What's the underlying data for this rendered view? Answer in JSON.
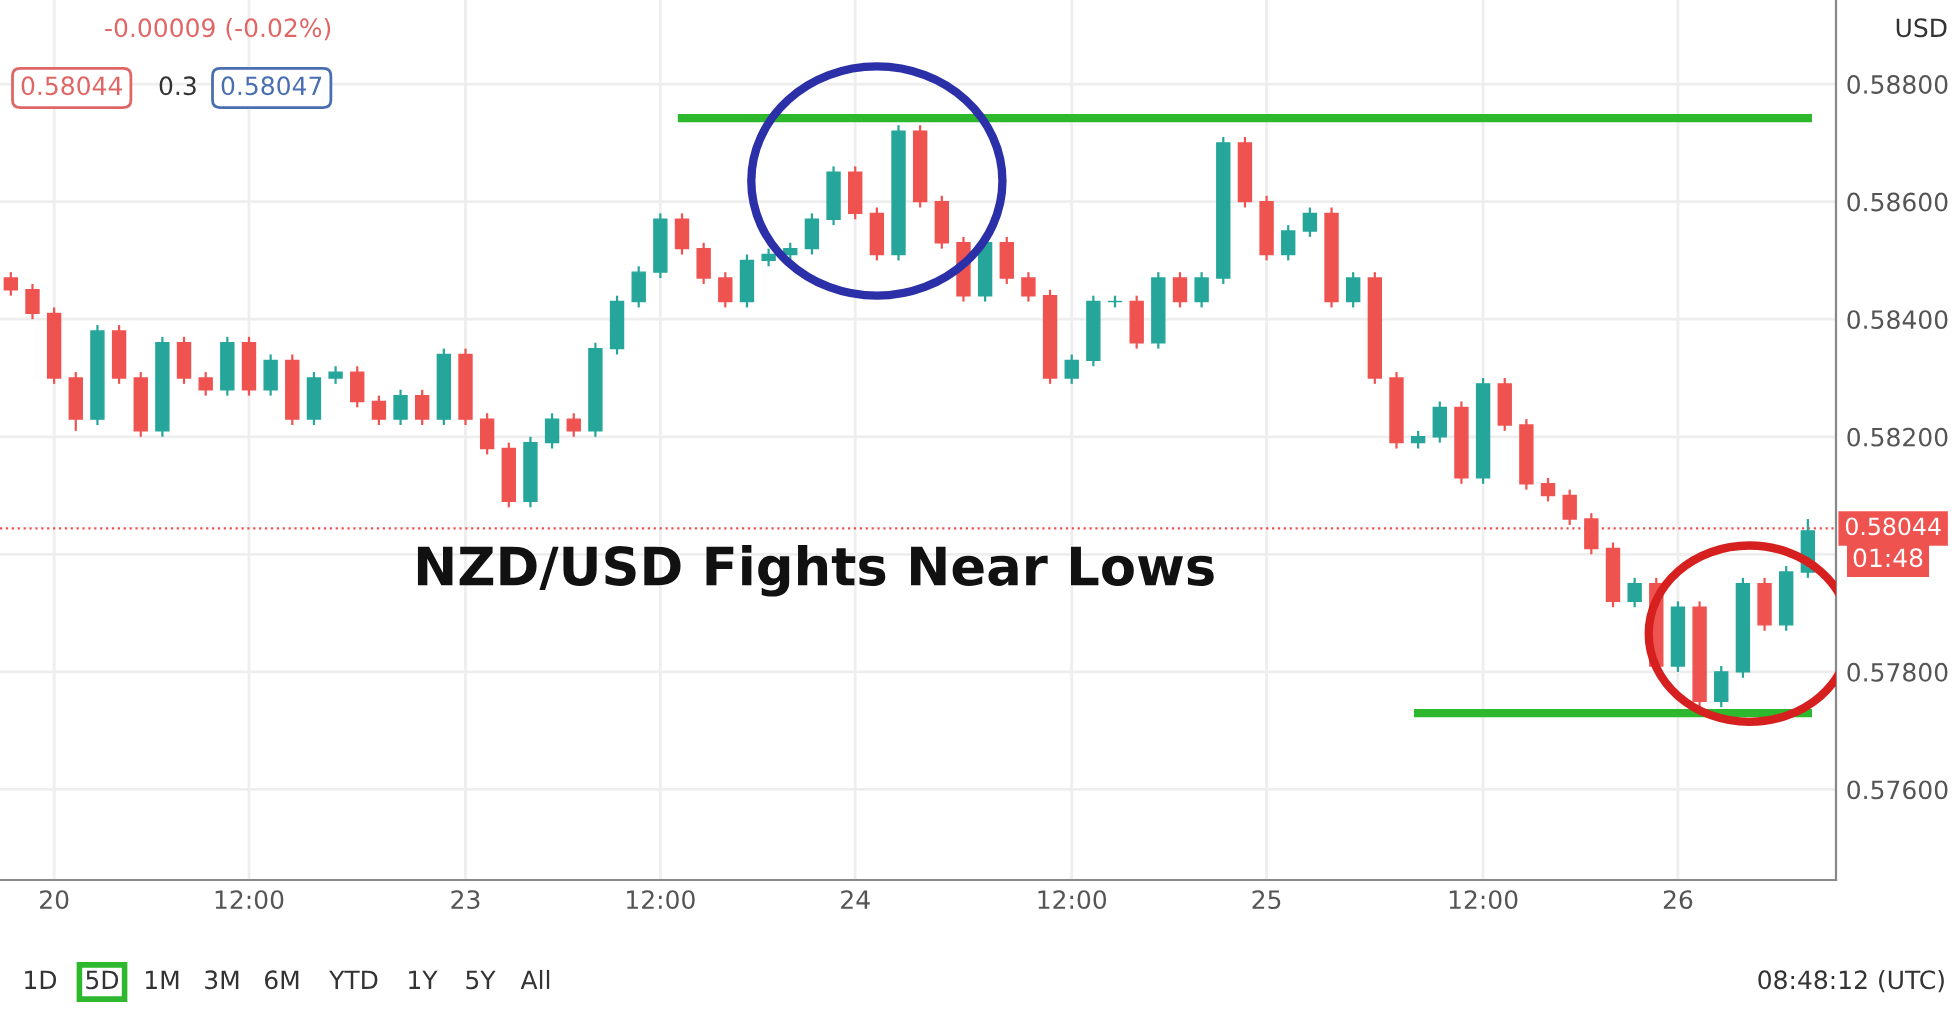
{
  "chart_data": {
    "type": "candlestick",
    "title": "NZD/USD Fights Near Lows",
    "categories": [
      null,
      null,
      "20",
      null,
      null,
      null,
      null,
      null,
      null,
      null,
      null,
      "12:00",
      null,
      null,
      null,
      null,
      null,
      null,
      null,
      null,
      null,
      "23",
      null,
      null,
      null,
      null,
      null,
      null,
      null,
      null,
      "12:00",
      null,
      null,
      null,
      null,
      null,
      null,
      null,
      null,
      "24",
      null,
      null,
      null,
      null,
      null,
      null,
      null,
      null,
      null,
      "12:00",
      null,
      null,
      null,
      null,
      null,
      null,
      null,
      null,
      "25",
      null,
      null,
      null,
      null,
      null,
      null,
      null,
      null,
      null,
      "12:00",
      null,
      null,
      null,
      null,
      null,
      null,
      null,
      null,
      "26",
      null,
      null,
      null,
      null,
      null,
      null
    ],
    "ohlc": [
      [
        0.5847,
        0.5848,
        0.5844,
        0.5845
      ],
      [
        0.5845,
        0.5846,
        0.584,
        0.5841
      ],
      [
        0.5841,
        0.5842,
        0.5829,
        0.583
      ],
      [
        0.583,
        0.5831,
        0.5821,
        0.5823
      ],
      [
        0.5823,
        0.5839,
        0.5822,
        0.5838
      ],
      [
        0.5838,
        0.5839,
        0.5829,
        0.583
      ],
      [
        0.583,
        0.5831,
        0.582,
        0.5821
      ],
      [
        0.5821,
        0.5837,
        0.582,
        0.5836
      ],
      [
        0.5836,
        0.5837,
        0.5829,
        0.583
      ],
      [
        0.583,
        0.5831,
        0.5827,
        0.5828
      ],
      [
        0.5828,
        0.5837,
        0.5827,
        0.5836
      ],
      [
        0.5836,
        0.5837,
        0.5827,
        0.5828
      ],
      [
        0.5828,
        0.5834,
        0.5827,
        0.5833
      ],
      [
        0.5833,
        0.5834,
        0.5822,
        0.5823
      ],
      [
        0.5823,
        0.5831,
        0.5822,
        0.583
      ],
      [
        0.583,
        0.5832,
        0.5829,
        0.5831
      ],
      [
        0.5831,
        0.5832,
        0.5825,
        0.5826
      ],
      [
        0.5826,
        0.5827,
        0.5822,
        0.5823
      ],
      [
        0.5823,
        0.5828,
        0.5822,
        0.5827
      ],
      [
        0.5827,
        0.5828,
        0.5822,
        0.5823
      ],
      [
        0.5823,
        0.5835,
        0.5822,
        0.5834
      ],
      [
        0.5834,
        0.5835,
        0.5822,
        0.5823
      ],
      [
        0.5823,
        0.5824,
        0.5817,
        0.5818
      ],
      [
        0.5818,
        0.5819,
        0.5808,
        0.5809
      ],
      [
        0.5809,
        0.582,
        0.5808,
        0.5819
      ],
      [
        0.5819,
        0.5824,
        0.5818,
        0.5823
      ],
      [
        0.5823,
        0.5824,
        0.582,
        0.5821
      ],
      [
        0.5821,
        0.5836,
        0.582,
        0.5835
      ],
      [
        0.5835,
        0.5844,
        0.5834,
        0.5843
      ],
      [
        0.5843,
        0.5849,
        0.5842,
        0.5848
      ],
      [
        0.5848,
        0.5858,
        0.5847,
        0.5857
      ],
      [
        0.5857,
        0.5858,
        0.5851,
        0.5852
      ],
      [
        0.5852,
        0.5853,
        0.5846,
        0.5847
      ],
      [
        0.5847,
        0.5848,
        0.5842,
        0.5843
      ],
      [
        0.5843,
        0.5851,
        0.5842,
        0.585
      ],
      [
        0.585,
        0.5852,
        0.5849,
        0.5851
      ],
      [
        0.5851,
        0.5853,
        0.585,
        0.5852
      ],
      [
        0.5852,
        0.5858,
        0.5851,
        0.5857
      ],
      [
        0.5857,
        0.5866,
        0.5856,
        0.5865
      ],
      [
        0.5865,
        0.5866,
        0.5857,
        0.5858
      ],
      [
        0.5858,
        0.5859,
        0.585,
        0.5851
      ],
      [
        0.5851,
        0.5873,
        0.585,
        0.5872
      ],
      [
        0.5872,
        0.5873,
        0.5859,
        0.586
      ],
      [
        0.586,
        0.5861,
        0.5852,
        0.5853
      ],
      [
        0.5853,
        0.5854,
        0.5843,
        0.5844
      ],
      [
        0.5844,
        0.5854,
        0.5843,
        0.5853
      ],
      [
        0.5853,
        0.5854,
        0.5846,
        0.5847
      ],
      [
        0.5847,
        0.5848,
        0.5843,
        0.5844
      ],
      [
        0.5844,
        0.5845,
        0.5829,
        0.583
      ],
      [
        0.583,
        0.5834,
        0.5829,
        0.5833
      ],
      [
        0.5833,
        0.5844,
        0.5832,
        0.5843
      ],
      [
        0.5843,
        0.5844,
        0.5842,
        0.5843
      ],
      [
        0.5843,
        0.5844,
        0.5835,
        0.5836
      ],
      [
        0.5836,
        0.5848,
        0.5835,
        0.5847
      ],
      [
        0.5847,
        0.5848,
        0.5842,
        0.5843
      ],
      [
        0.5843,
        0.5848,
        0.5842,
        0.5847
      ],
      [
        0.5847,
        0.5871,
        0.5846,
        0.587
      ],
      [
        0.587,
        0.5871,
        0.5859,
        0.586
      ],
      [
        0.586,
        0.5861,
        0.585,
        0.5851
      ],
      [
        0.5851,
        0.5856,
        0.585,
        0.5855
      ],
      [
        0.5855,
        0.5859,
        0.5854,
        0.5858
      ],
      [
        0.5858,
        0.5859,
        0.5842,
        0.5843
      ],
      [
        0.5843,
        0.5848,
        0.5842,
        0.5847
      ],
      [
        0.5847,
        0.5848,
        0.5829,
        0.583
      ],
      [
        0.583,
        0.5831,
        0.5818,
        0.5819
      ],
      [
        0.5819,
        0.5821,
        0.5818,
        0.582
      ],
      [
        0.582,
        0.5826,
        0.5819,
        0.5825
      ],
      [
        0.5825,
        0.5826,
        0.5812,
        0.5813
      ],
      [
        0.5813,
        0.583,
        0.5812,
        0.5829
      ],
      [
        0.5829,
        0.583,
        0.5821,
        0.5822
      ],
      [
        0.5822,
        0.5823,
        0.5811,
        0.5812
      ],
      [
        0.5812,
        0.5813,
        0.5809,
        0.581
      ],
      [
        0.581,
        0.5811,
        0.5805,
        0.5806
      ],
      [
        0.5806,
        0.5807,
        0.58,
        0.5801
      ],
      [
        0.5801,
        0.5802,
        0.5791,
        0.5792
      ],
      [
        0.5792,
        0.5796,
        0.5791,
        0.5795
      ],
      [
        0.5795,
        0.5796,
        0.578,
        0.5781
      ],
      [
        0.5781,
        0.5792,
        0.578,
        0.5791
      ],
      [
        0.5791,
        0.5792,
        0.5774,
        0.5775
      ],
      [
        0.5775,
        0.5781,
        0.5774,
        0.578
      ],
      [
        0.578,
        0.5796,
        0.5779,
        0.5795
      ],
      [
        0.5795,
        0.5796,
        0.5787,
        0.5788
      ],
      [
        0.5788,
        0.5798,
        0.5787,
        0.5797
      ],
      [
        0.5797,
        0.5806,
        0.5796,
        0.5804
      ]
    ],
    "series": [
      {
        "type": "line",
        "color": "#2eb82e",
        "values": [
          null,
          null,
          null,
          null,
          null,
          null,
          null,
          null,
          null,
          null,
          null,
          null,
          null,
          null,
          null,
          null,
          null,
          null,
          null,
          null,
          null,
          null,
          null,
          null,
          null,
          null,
          null,
          null,
          null,
          null,
          null,
          0.58742,
          0.58742,
          0.58742,
          0.58742,
          0.58742,
          0.58742,
          0.58742,
          0.58742,
          0.58742,
          0.58742,
          0.58742,
          0.58742,
          0.58742,
          0.58742,
          0.58742,
          0.58742,
          0.58742,
          0.58742,
          0.58742,
          0.58742,
          0.58742,
          0.58742,
          0.58742,
          0.58742,
          0.58742,
          0.58742,
          0.58742,
          0.58742,
          0.58742,
          0.58742,
          0.58742,
          0.58742,
          0.58742,
          0.58742,
          0.58742,
          0.58742,
          0.58742,
          0.58742,
          0.58742,
          0.58742,
          0.58742,
          0.58742,
          0.58742,
          0.58742,
          0.58742,
          0.58742,
          0.58742,
          0.58742,
          0.58742,
          0.58742,
          0.58742,
          0.58742,
          0.58742
        ]
      },
      {
        "type": "line",
        "color": "#2eb82e",
        "values": [
          null,
          null,
          null,
          null,
          null,
          null,
          null,
          null,
          null,
          null,
          null,
          null,
          null,
          null,
          null,
          null,
          null,
          null,
          null,
          null,
          null,
          null,
          null,
          null,
          null,
          null,
          null,
          null,
          null,
          null,
          null,
          null,
          null,
          null,
          null,
          null,
          null,
          null,
          null,
          null,
          null,
          null,
          null,
          null,
          null,
          null,
          null,
          null,
          null,
          null,
          null,
          null,
          null,
          null,
          null,
          null,
          null,
          null,
          null,
          null,
          null,
          null,
          null,
          null,
          null,
          0.5773,
          0.5773,
          0.5773,
          0.5773,
          0.5773,
          0.5773,
          0.5773,
          0.5773,
          0.5773,
          0.5773,
          0.5773,
          0.5773,
          0.5773,
          0.5773,
          0.5773,
          0.5773,
          0.5773,
          0.5773,
          0.5773
        ]
      }
    ],
    "ylim": [
      0.57446,
      0.58943
    ],
    "yticks": [
      {
        "value": 0.576,
        "label": "0.57600"
      },
      {
        "value": 0.578,
        "label": "0.57800"
      },
      {
        "value": 0.58,
        "label": null
      },
      {
        "value": 0.582,
        "label": "0.58200"
      },
      {
        "value": 0.584,
        "label": "0.58400"
      },
      {
        "value": 0.586,
        "label": "0.58600"
      },
      {
        "value": 0.588,
        "label": "0.58800"
      }
    ],
    "ylabel": "USD",
    "ref_lines": [
      {
        "axis": "y",
        "value": 0.58044,
        "label": "0.58044",
        "color": "#ef5350",
        "line_style": "dotted"
      }
    ],
    "grid": true,
    "annotations": [
      "-0.00009 (-0.02%)",
      "0.58044",
      "0.3",
      "0.58047",
      "01:48",
      "1D",
      "5D",
      "1M",
      "3M",
      "6M",
      "YTD",
      "1Y",
      "5Y",
      "All",
      "08:48:12 (UTC)"
    ]
  }
}
